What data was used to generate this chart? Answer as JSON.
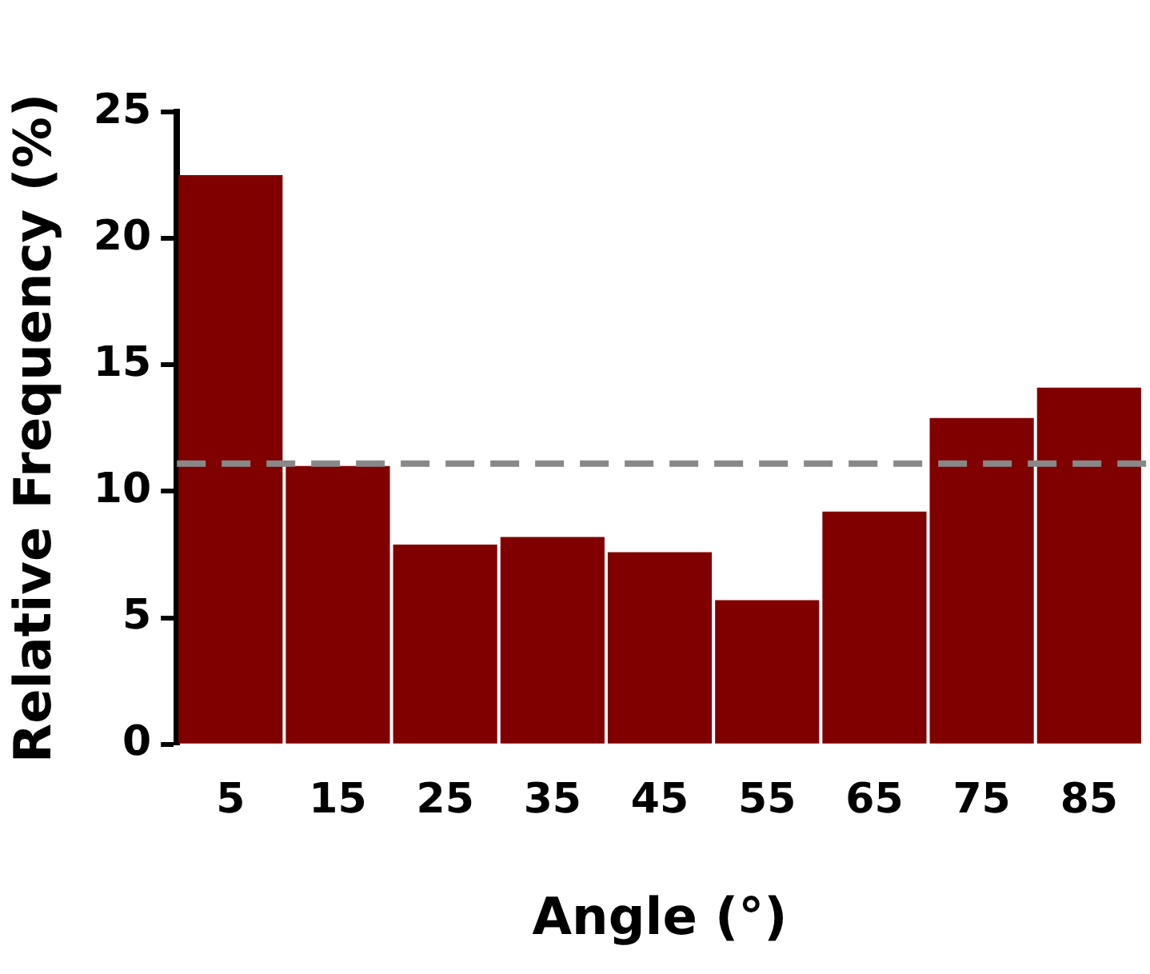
{
  "chart_data": {
    "type": "bar",
    "xlabel": "Angle (°)",
    "ylabel": "Relative Frequency (%)",
    "categories": [
      "5",
      "15",
      "25",
      "35",
      "45",
      "55",
      "65",
      "75",
      "85"
    ],
    "values": [
      22.5,
      11.0,
      7.9,
      8.2,
      7.6,
      5.7,
      9.2,
      12.9,
      14.1
    ],
    "color": "#800000",
    "ylim": [
      0,
      25
    ],
    "yticks": [
      0,
      5,
      10,
      15,
      20,
      25
    ],
    "ref_lines": [
      {
        "axis": "y",
        "value": 11.1,
        "color": "#888888",
        "line_style": "dashed"
      }
    ],
    "grid": false,
    "legend": false
  }
}
